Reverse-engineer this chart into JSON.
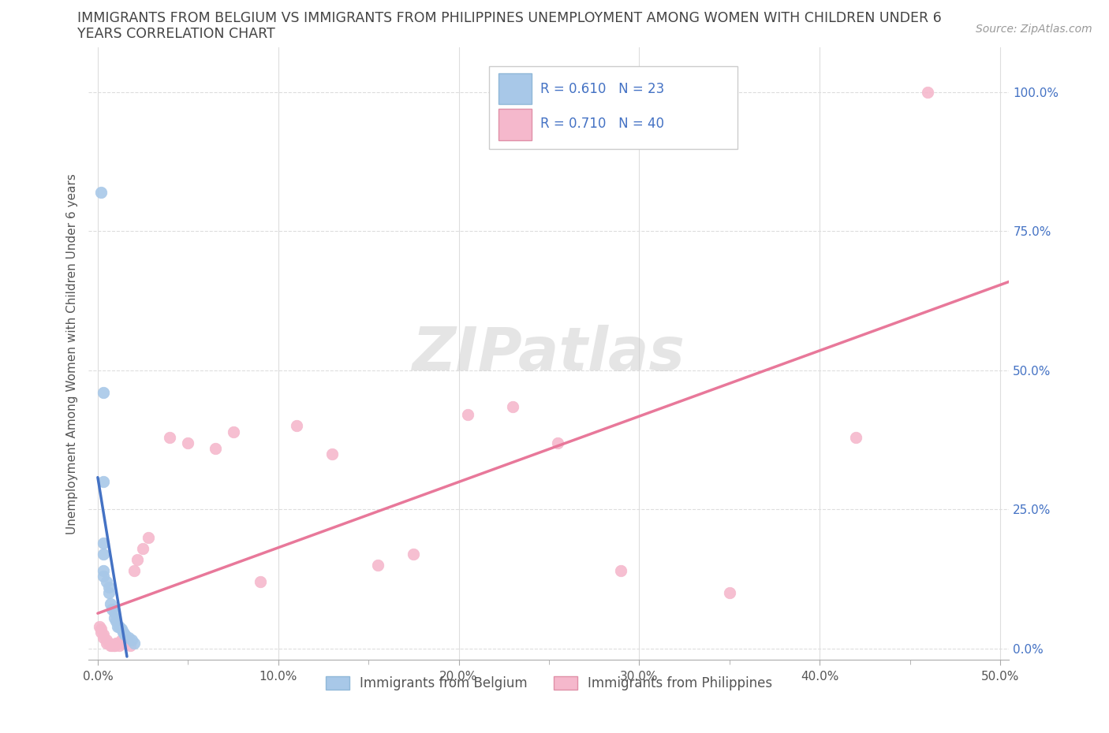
{
  "title_line1": "IMMIGRANTS FROM BELGIUM VS IMMIGRANTS FROM PHILIPPINES UNEMPLOYMENT AMONG WOMEN WITH CHILDREN UNDER 6",
  "title_line2": "YEARS CORRELATION CHART",
  "source": "Source: ZipAtlas.com",
  "ylabel": "Unemployment Among Women with Children Under 6 years",
  "xlim": [
    -0.005,
    0.505
  ],
  "ylim": [
    -0.02,
    1.08
  ],
  "xticks_major": [
    0.0,
    0.1,
    0.2,
    0.3,
    0.4,
    0.5
  ],
  "xticks_minor": [
    0.05,
    0.15,
    0.25,
    0.35,
    0.45
  ],
  "yticks": [
    0.0,
    0.25,
    0.5,
    0.75,
    1.0
  ],
  "xtick_labels": [
    "0.0%",
    "10.0%",
    "20.0%",
    "30.0%",
    "40.0%",
    "50.0%"
  ],
  "ytick_labels": [
    "0.0%",
    "25.0%",
    "50.0%",
    "75.0%",
    "100.0%"
  ],
  "belgium_color": "#a8c8e8",
  "philippines_color": "#f5b8cc",
  "belgium_line_color": "#4472c4",
  "philippines_line_color": "#e8789a",
  "belgium_R": 0.61,
  "belgium_N": 23,
  "philippines_R": 0.71,
  "philippines_N": 40,
  "watermark": "ZIPatlas",
  "belgium_x": [
    0.002,
    0.003,
    0.003,
    0.003,
    0.003,
    0.003,
    0.005,
    0.006,
    0.006,
    0.007,
    0.008,
    0.009,
    0.009,
    0.01,
    0.011,
    0.012,
    0.013,
    0.014,
    0.015,
    0.017,
    0.019,
    0.02,
    0.003
  ],
  "belgium_y": [
    0.82,
    0.3,
    0.19,
    0.17,
    0.14,
    0.13,
    0.12,
    0.11,
    0.1,
    0.08,
    0.07,
    0.065,
    0.055,
    0.05,
    0.04,
    0.04,
    0.035,
    0.03,
    0.025,
    0.02,
    0.015,
    0.01,
    0.46
  ],
  "philippines_x": [
    0.001,
    0.002,
    0.002,
    0.003,
    0.003,
    0.005,
    0.005,
    0.006,
    0.007,
    0.008,
    0.009,
    0.009,
    0.01,
    0.011,
    0.012,
    0.013,
    0.014,
    0.015,
    0.016,
    0.018,
    0.02,
    0.022,
    0.025,
    0.028,
    0.04,
    0.05,
    0.065,
    0.075,
    0.09,
    0.11,
    0.13,
    0.155,
    0.175,
    0.205,
    0.23,
    0.255,
    0.29,
    0.35,
    0.42,
    0.46
  ],
  "philippines_y": [
    0.04,
    0.035,
    0.03,
    0.025,
    0.02,
    0.015,
    0.01,
    0.01,
    0.005,
    0.005,
    0.005,
    0.005,
    0.01,
    0.01,
    0.005,
    0.015,
    0.01,
    0.015,
    0.015,
    0.005,
    0.14,
    0.16,
    0.18,
    0.2,
    0.38,
    0.37,
    0.36,
    0.39,
    0.12,
    0.4,
    0.35,
    0.15,
    0.17,
    0.42,
    0.435,
    0.37,
    0.14,
    0.1,
    0.38,
    1.0
  ],
  "background_color": "#ffffff",
  "grid_color": "#dddddd",
  "tick_color": "#aaaaaa",
  "label_color": "#4472c4",
  "title_color": "#444444"
}
